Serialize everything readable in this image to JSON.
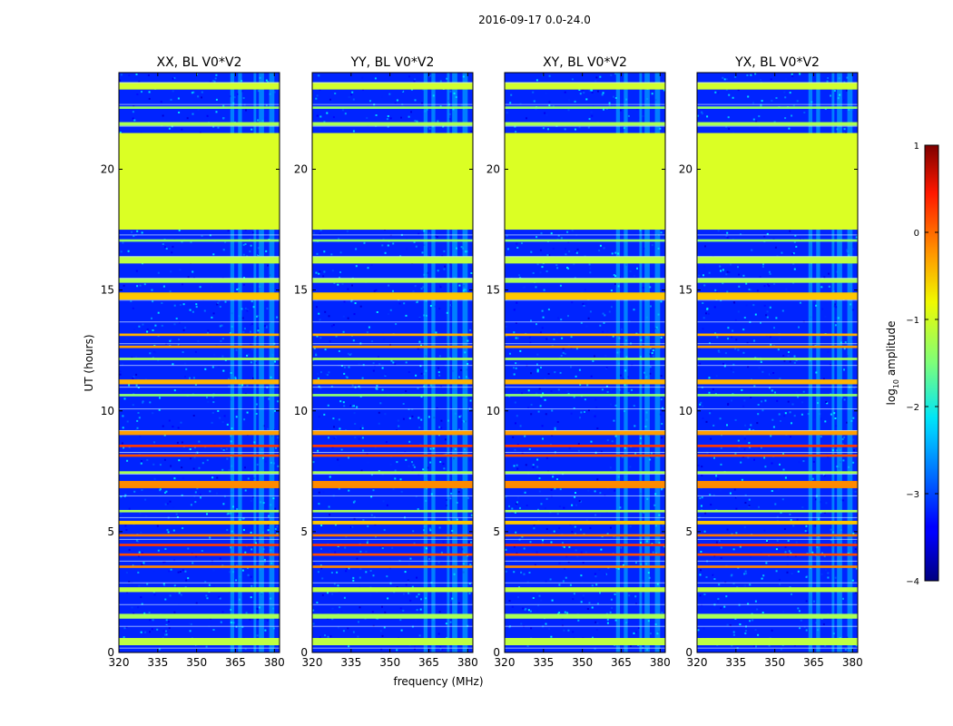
{
  "figure_title": "2016-09-17 0.0-24.0",
  "chart_data": {
    "type": "heatmap",
    "suptitle": "2016-09-17 0.0-24.0",
    "ylabel": "UT (hours)",
    "xlabel": "frequency (MHz)",
    "xlim": [
      320,
      382
    ],
    "ylim": [
      0,
      24
    ],
    "xticks": [
      320,
      335,
      350,
      365,
      380
    ],
    "yticks": [
      0,
      5,
      10,
      15,
      20
    ],
    "panels": [
      {
        "title": "XX, BL V0*V2"
      },
      {
        "title": "YY, BL V0*V2"
      },
      {
        "title": "XY, BL V0*V2"
      },
      {
        "title": "YX, BL V0*V2"
      }
    ],
    "colorbar": {
      "label": "log10 amplitude",
      "label_base": "log",
      "label_sub": "10",
      "label_rest": " amplitude",
      "range": [
        -4,
        1
      ],
      "ticks": [
        1,
        0,
        -1,
        -2,
        -3,
        -4
      ],
      "tick_labels": [
        "1",
        "0",
        "−1",
        "−2",
        "−3",
        "−4"
      ],
      "colormap": "jet"
    },
    "background_log_amplitude": -3.2,
    "rfi_bands": [
      {
        "t0": 0.3,
        "t1": 0.6,
        "value": -1.2
      },
      {
        "t0": 1.4,
        "t1": 1.6,
        "value": -1.3
      },
      {
        "t0": 2.5,
        "t1": 2.7,
        "value": -1.2
      },
      {
        "t0": 3.5,
        "t1": 3.6,
        "value": -0.3
      },
      {
        "t0": 4.0,
        "t1": 4.1,
        "value": 0.0
      },
      {
        "t0": 4.4,
        "t1": 4.5,
        "value": 0.1
      },
      {
        "t0": 4.8,
        "t1": 4.9,
        "value": -0.2
      },
      {
        "t0": 5.3,
        "t1": 5.45,
        "value": -0.6
      },
      {
        "t0": 5.8,
        "t1": 5.9,
        "value": -1.3
      },
      {
        "t0": 6.8,
        "t1": 7.1,
        "value": -0.3
      },
      {
        "t0": 7.4,
        "t1": 7.5,
        "value": -1.3
      },
      {
        "t0": 8.1,
        "t1": 8.2,
        "value": 0.0
      },
      {
        "t0": 8.5,
        "t1": 8.6,
        "value": 0.1
      },
      {
        "t0": 9.0,
        "t1": 9.2,
        "value": -0.4
      },
      {
        "t0": 10.6,
        "t1": 10.7,
        "value": -1.4
      },
      {
        "t0": 11.1,
        "t1": 11.3,
        "value": -0.5
      },
      {
        "t0": 12.1,
        "t1": 12.2,
        "value": -1.3
      },
      {
        "t0": 12.6,
        "t1": 12.7,
        "value": -0.4
      },
      {
        "t0": 13.1,
        "t1": 13.2,
        "value": -0.5
      },
      {
        "t0": 14.6,
        "t1": 14.9,
        "value": -0.6
      },
      {
        "t0": 15.3,
        "t1": 15.5,
        "value": -1.3
      },
      {
        "t0": 16.1,
        "t1": 16.4,
        "value": -1.2
      },
      {
        "t0": 17.0,
        "t1": 17.1,
        "value": -1.4
      },
      {
        "t0": 17.5,
        "t1": 21.5,
        "value": -1.05
      },
      {
        "t0": 21.8,
        "t1": 21.95,
        "value": -1.3
      },
      {
        "t0": 22.5,
        "t1": 22.6,
        "value": -1.4
      },
      {
        "t0": 23.3,
        "t1": 23.6,
        "value": -1.1
      }
    ]
  }
}
